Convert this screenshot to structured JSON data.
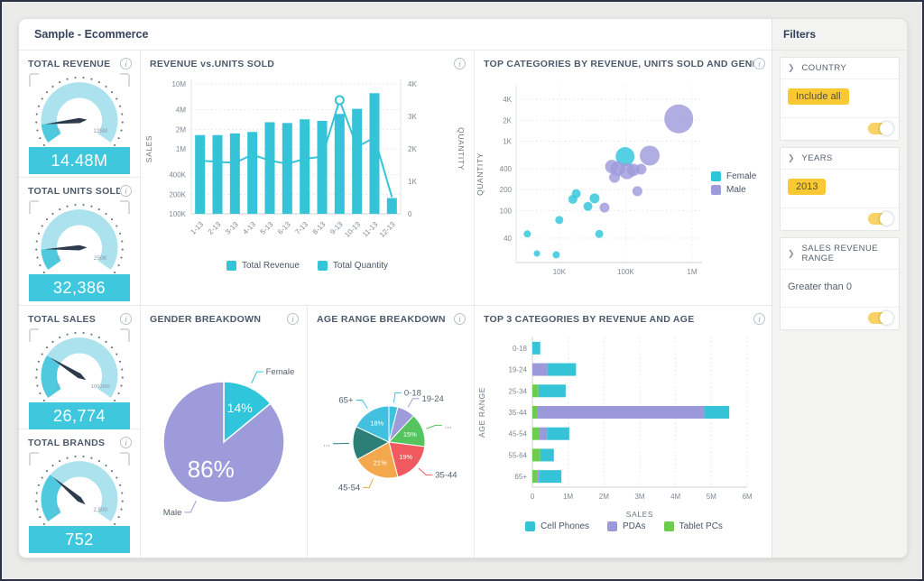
{
  "window": {
    "title": "Sample - Ecommerce"
  },
  "filters": {
    "header": "Filters",
    "groups": [
      {
        "label": "COUNTRY",
        "chip": "Include all",
        "toggle_on": true
      },
      {
        "label": "YEARS",
        "chip": "2013",
        "toggle_on": true
      },
      {
        "label": "SALES REVENUE RANGE",
        "value_text": "Greater than 0",
        "toggle_on": true
      }
    ]
  },
  "gauges": [
    {
      "title": "TOTAL REVENUE",
      "min_label": "0",
      "max_label": "125M",
      "value": "14.48M",
      "fraction": 0.116
    },
    {
      "title": "TOTAL UNITS SOLD",
      "min_label": "0",
      "max_label": "250K",
      "value": "32,386",
      "fraction": 0.13
    },
    {
      "title": "TOTAL SALES",
      "min_label": "0",
      "max_label": "100,000",
      "value": "26,774",
      "fraction": 0.268
    },
    {
      "title": "TOTAL BRANDS",
      "min_label": "0",
      "max_label": "2,500",
      "value": "752",
      "fraction": 0.301
    }
  ],
  "chart_data": [
    {
      "id": "rev_units",
      "type": "bar+line",
      "title": "REVENUE vs.UNITS SOLD",
      "categories": [
        "1-13",
        "2-13",
        "3-13",
        "4-13",
        "5-13",
        "6-13",
        "7-13",
        "8-13",
        "9-13",
        "10-13",
        "11-13",
        "12-13"
      ],
      "series": [
        {
          "name": "Total Revenue",
          "type": "bar",
          "axis": "left",
          "color": "#35c4d7",
          "values": [
            1630000,
            1630000,
            1730000,
            1820000,
            2570000,
            2500000,
            2850000,
            2700000,
            3450000,
            4140000,
            7200000,
            175000
          ]
        },
        {
          "name": "Total Quantity",
          "type": "line",
          "axis": "right",
          "color": "#35c4d7",
          "marker_index": 8,
          "values": [
            1640,
            1600,
            1570,
            1820,
            1640,
            1540,
            1690,
            1760,
            3500,
            2060,
            2350,
            510
          ]
        }
      ],
      "left_axis": {
        "label": "SALES",
        "scale": "log",
        "ticks": [
          "10M",
          "4M",
          "2M",
          "1M",
          "400K",
          "200K",
          "100K"
        ],
        "tick_values": [
          10000000,
          4000000,
          2000000,
          1000000,
          400000,
          200000,
          100000
        ]
      },
      "right_axis": {
        "label": "QUANTITY",
        "scale": "linear",
        "ticks": [
          "4K",
          "3K",
          "2K",
          "1K",
          "0"
        ],
        "tick_values": [
          4000,
          3000,
          2000,
          1000,
          0
        ]
      },
      "legend": [
        "Total Revenue",
        "Total Quantity"
      ]
    },
    {
      "id": "bubble",
      "type": "scatter",
      "title": "TOP CATEGORIES BY REVENUE, UNITS SOLD AND GENDER",
      "x_axis": {
        "scale": "log",
        "ticks": [
          "10K",
          "100K",
          "1M"
        ],
        "tick_values": [
          10000,
          100000,
          1000000
        ]
      },
      "y_axis": {
        "label": "QUANTITY",
        "scale": "log",
        "ticks": [
          "4K",
          "2K",
          "1K",
          "400",
          "200",
          "100",
          "40"
        ],
        "tick_values": [
          4000,
          2000,
          1000,
          400,
          200,
          100,
          40
        ]
      },
      "legend": [
        {
          "name": "Female",
          "color": "#2fc6dc"
        },
        {
          "name": "Male",
          "color": "#9d9bda"
        }
      ],
      "points": [
        {
          "x": 630000,
          "y": 2100,
          "r": 16,
          "gender": "Male"
        },
        {
          "x": 230000,
          "y": 620,
          "r": 11,
          "gender": "Male"
        },
        {
          "x": 98000,
          "y": 600,
          "r": 10.5,
          "gender": "Female"
        },
        {
          "x": 62000,
          "y": 430,
          "r": 7.5,
          "gender": "Male"
        },
        {
          "x": 76000,
          "y": 400,
          "r": 8,
          "gender": "Male"
        },
        {
          "x": 105000,
          "y": 370,
          "r": 9,
          "gender": "Male"
        },
        {
          "x": 130000,
          "y": 385,
          "r": 7,
          "gender": "Male"
        },
        {
          "x": 170000,
          "y": 395,
          "r": 6,
          "gender": "Male"
        },
        {
          "x": 68000,
          "y": 300,
          "r": 6,
          "gender": "Male"
        },
        {
          "x": 150000,
          "y": 190,
          "r": 5.5,
          "gender": "Male"
        },
        {
          "x": 18000,
          "y": 175,
          "r": 5,
          "gender": "Female"
        },
        {
          "x": 16000,
          "y": 145,
          "r": 5,
          "gender": "Female"
        },
        {
          "x": 27000,
          "y": 115,
          "r": 5,
          "gender": "Female"
        },
        {
          "x": 34000,
          "y": 150,
          "r": 5.5,
          "gender": "Female"
        },
        {
          "x": 48000,
          "y": 110,
          "r": 5.5,
          "gender": "Male"
        },
        {
          "x": 10000,
          "y": 73,
          "r": 4.5,
          "gender": "Female"
        },
        {
          "x": 40000,
          "y": 46,
          "r": 4.5,
          "gender": "Female"
        },
        {
          "x": 3300,
          "y": 46,
          "r": 4,
          "gender": "Female"
        },
        {
          "x": 4600,
          "y": 24,
          "r": 3.5,
          "gender": "Female"
        },
        {
          "x": 9000,
          "y": 23,
          "r": 4,
          "gender": "Female"
        }
      ]
    },
    {
      "id": "gender",
      "type": "pie",
      "title": "GENDER BREAKDOWN",
      "slices": [
        {
          "label": "Female",
          "pct": 14,
          "color": "#2fc6dc",
          "show_pct": true
        },
        {
          "label": "Male",
          "pct": 86,
          "color": "#9d9bda",
          "show_pct": true
        }
      ]
    },
    {
      "id": "age",
      "type": "pie",
      "title": "AGE RANGE BREAKDOWN",
      "slices": [
        {
          "label": "0-18",
          "pct": 4,
          "color": "#3fc3dc",
          "show_pct": false
        },
        {
          "label": "19-24",
          "pct": 8,
          "color": "#9d9bda",
          "show_pct": false
        },
        {
          "label": "...",
          "pct": 15,
          "color": "#55c45e",
          "show_pct": true
        },
        {
          "label": "35-44",
          "pct": 19,
          "color": "#ee5a5f",
          "show_pct": true
        },
        {
          "label": "45-54",
          "pct": 21,
          "color": "#f3a84d",
          "show_pct": true
        },
        {
          "label": "...",
          "pct": 15,
          "color": "#2b7f77",
          "show_pct": false
        },
        {
          "label": "65+",
          "pct": 18,
          "color": "#41c0e0",
          "show_pct": true
        }
      ]
    },
    {
      "id": "top3",
      "type": "stacked-bar-horizontal",
      "title": "TOP 3 CATEGORIES BY REVENUE AND AGE",
      "categories": [
        "0-18",
        "19-24",
        "25-34",
        "35-44",
        "45-54",
        "55-64",
        "65+"
      ],
      "series": [
        {
          "name": "Tablet PCs",
          "color": "#6dcc4d",
          "values": [
            0,
            0,
            170000,
            150000,
            200000,
            220000,
            130000
          ]
        },
        {
          "name": "PDAs",
          "color": "#9b99d9",
          "values": [
            0,
            420000,
            0,
            4650000,
            210000,
            0,
            70000
          ]
        },
        {
          "name": "Cell Phones",
          "color": "#35c4d7",
          "values": [
            220000,
            800000,
            760000,
            700000,
            620000,
            380000,
            610000
          ]
        }
      ],
      "x_axis": {
        "label": "SALES",
        "ticks": [
          "0",
          "1M",
          "2M",
          "3M",
          "4M",
          "5M",
          "6M"
        ],
        "tick_values": [
          0,
          1000000,
          2000000,
          3000000,
          4000000,
          5000000,
          6000000
        ],
        "max": 6000000
      },
      "y_axis": {
        "label": "AGE RANGE"
      },
      "legend": [
        "Cell Phones",
        "PDAs",
        "Tablet PCs"
      ]
    }
  ]
}
